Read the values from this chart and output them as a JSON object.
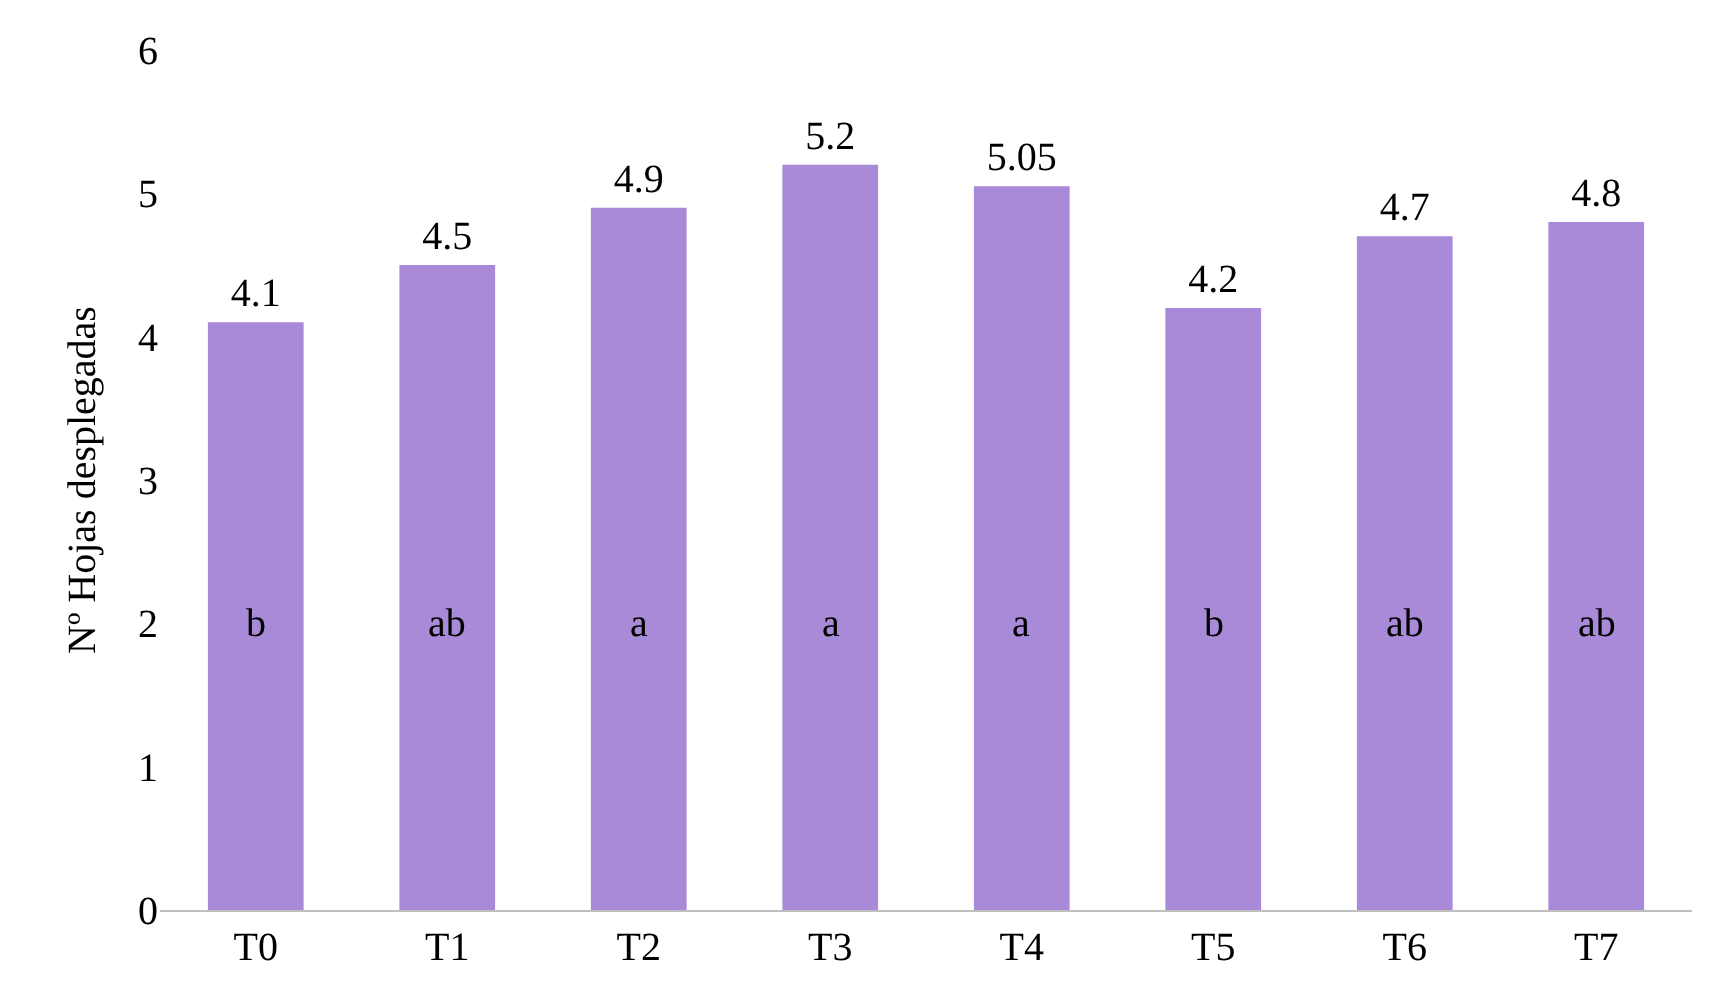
{
  "chart_data": {
    "type": "bar",
    "ylabel": "Nº Hojas desplegadas",
    "categories": [
      "T0",
      "T1",
      "T2",
      "T3",
      "T4",
      "T5",
      "T6",
      "T7"
    ],
    "values": [
      4.1,
      4.5,
      4.9,
      5.2,
      5.05,
      4.2,
      4.7,
      4.8
    ],
    "color": "#a98ad8",
    "data_labels": true,
    "ylim": [
      0,
      6
    ],
    "yticks": [
      0,
      1,
      2,
      3,
      4,
      5,
      6
    ],
    "annotations": [
      "b",
      "ab",
      "a",
      "a",
      "a",
      "b",
      "ab",
      "ab"
    ]
  }
}
